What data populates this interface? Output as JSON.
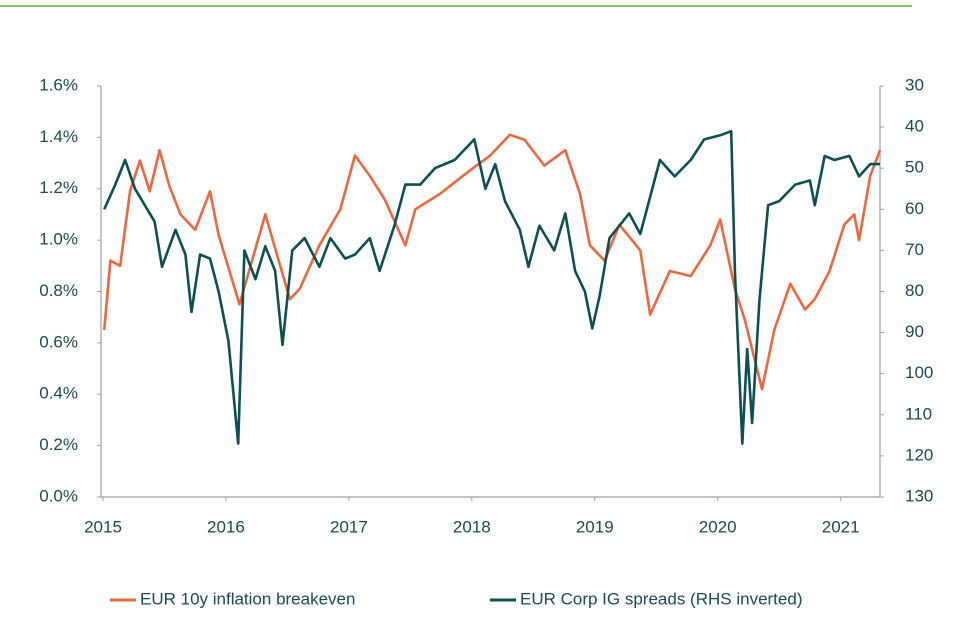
{
  "chart_data": {
    "type": "line",
    "xlim": [
      2015,
      2021.32
    ],
    "xticks": [
      2015,
      2016,
      2017,
      2018,
      2019,
      2020,
      2021
    ],
    "ylim": [
      0,
      1.6
    ],
    "yticks": [
      {
        "value": 0,
        "label": "0.0%"
      },
      {
        "value": 0.2,
        "label": "0.2%"
      },
      {
        "value": 0.4,
        "label": "0.4%"
      },
      {
        "value": 0.6,
        "label": "0.6%"
      },
      {
        "value": 0.8,
        "label": "0.8%"
      },
      {
        "value": 1.0,
        "label": "1.0%"
      },
      {
        "value": 1.2,
        "label": "1.2%"
      },
      {
        "value": 1.4,
        "label": "1.4%"
      },
      {
        "value": 1.6,
        "label": "1.6%"
      }
    ],
    "y2lim": [
      130,
      30
    ],
    "y2ticks": [
      130,
      120,
      110,
      100,
      90,
      80,
      70,
      60,
      50,
      40,
      30
    ],
    "grid": false,
    "legend": "bottom",
    "series": [
      {
        "name": "EUR 10y inflation breakeven",
        "color": "#e8693f",
        "x": [
          2015.01,
          2015.06,
          2015.14,
          2015.22,
          2015.3,
          2015.38,
          2015.46,
          2015.54,
          2015.63,
          2015.75,
          2015.87,
          2015.94,
          2016.11,
          2016.32,
          2016.52,
          2016.6,
          2016.76,
          2016.93,
          2017.05,
          2017.17,
          2017.29,
          2017.46,
          2017.54,
          2017.74,
          2017.98,
          2018.15,
          2018.31,
          2018.43,
          2018.59,
          2018.76,
          2018.88,
          2018.96,
          2019.08,
          2019.2,
          2019.37,
          2019.45,
          2019.61,
          2019.78,
          2019.94,
          2020.02,
          2020.14,
          2020.22,
          2020.36,
          2020.46,
          2020.59,
          2020.71,
          2020.79,
          2020.91,
          2021.03,
          2021.11,
          2021.15,
          2021.24,
          2021.32
        ],
        "values": [
          0.65,
          0.92,
          0.9,
          1.19,
          1.31,
          1.19,
          1.35,
          1.21,
          1.1,
          1.04,
          1.19,
          1.02,
          0.75,
          1.1,
          0.77,
          0.81,
          0.98,
          1.12,
          1.33,
          1.25,
          1.16,
          0.98,
          1.12,
          1.18,
          1.27,
          1.33,
          1.41,
          1.39,
          1.29,
          1.35,
          1.18,
          0.98,
          0.92,
          1.06,
          0.96,
          0.71,
          0.88,
          0.86,
          0.98,
          1.08,
          0.81,
          0.69,
          0.42,
          0.65,
          0.83,
          0.73,
          0.77,
          0.88,
          1.06,
          1.1,
          1.0,
          1.25,
          1.35
        ]
      },
      {
        "name": "EUR Corp IG spreads (RHS inverted)",
        "color": "#0e4f52",
        "axis": "y2",
        "x": [
          2015.01,
          2015.1,
          2015.18,
          2015.26,
          2015.34,
          2015.42,
          2015.48,
          2015.59,
          2015.67,
          2015.72,
          2015.79,
          2015.87,
          2015.94,
          2016.02,
          2016.1,
          2016.15,
          2016.24,
          2016.32,
          2016.4,
          2016.46,
          2016.54,
          2016.64,
          2016.76,
          2016.85,
          2016.97,
          2017.05,
          2017.17,
          2017.25,
          2017.37,
          2017.46,
          2017.58,
          2017.7,
          2017.86,
          2018.02,
          2018.11,
          2018.19,
          2018.27,
          2018.39,
          2018.46,
          2018.55,
          2018.67,
          2018.76,
          2018.84,
          2018.92,
          2018.98,
          2019.04,
          2019.12,
          2019.2,
          2019.28,
          2019.37,
          2019.45,
          2019.53,
          2019.65,
          2019.78,
          2019.89,
          2020.02,
          2020.11,
          2020.14,
          2020.2,
          2020.24,
          2020.28,
          2020.34,
          2020.41,
          2020.5,
          2020.63,
          2020.75,
          2020.79,
          2020.87,
          2020.95,
          2021.07,
          2021.15,
          2021.24,
          2021.32
        ],
        "values": [
          60,
          54,
          48,
          55,
          59,
          63,
          74,
          65,
          71,
          85,
          71,
          72,
          80,
          92,
          117,
          70,
          77,
          69,
          75,
          93,
          70,
          67,
          74,
          67,
          72,
          71,
          67,
          75,
          64,
          54,
          54,
          50,
          48,
          43,
          55,
          49,
          58,
          65,
          74,
          64,
          70,
          61,
          75,
          80,
          89,
          81,
          67,
          64,
          61,
          66,
          57,
          48,
          52,
          48,
          43,
          42,
          41,
          75,
          117,
          94,
          112,
          82,
          59,
          58,
          54,
          53,
          59,
          47,
          48,
          47,
          52,
          49,
          49
        ]
      }
    ]
  }
}
